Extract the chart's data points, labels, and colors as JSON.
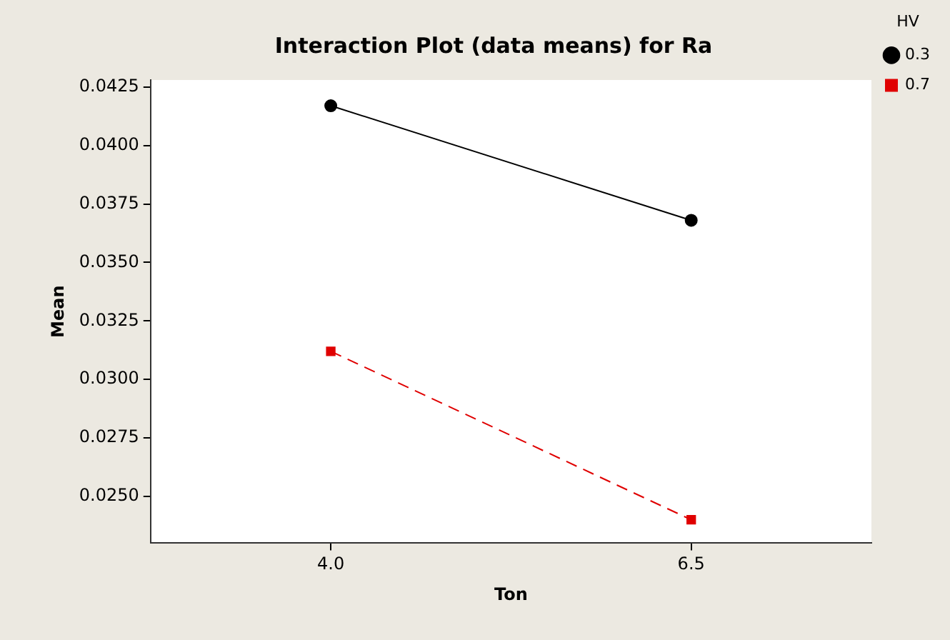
{
  "chart_data": {
    "type": "line",
    "title": "Interaction Plot (data means) for Ra",
    "xlabel": "Ton",
    "ylabel": "Mean",
    "legend_title": "HV",
    "x": [
      4.0,
      6.5
    ],
    "series": [
      {
        "name": "0.3",
        "color": "#000000",
        "values": [
          0.0417,
          0.0368
        ],
        "marker": "circle",
        "line_style": "solid"
      },
      {
        "name": "0.7",
        "color": "#e00000",
        "values": [
          0.0312,
          0.024
        ],
        "marker": "square",
        "line_style": "dashed"
      }
    ],
    "xlim": [
      2.75,
      7.75
    ],
    "xticks": [
      {
        "value": 4.0,
        "label": "4.0"
      },
      6.5
    ],
    "ylim": [
      0.023,
      0.0428
    ],
    "yticks": [
      {
        "value": 0.025,
        "label": "0.0250"
      },
      0.0275,
      {
        "value": 0.03,
        "label": "0.0300"
      },
      0.0325,
      {
        "value": 0.035,
        "label": "0.0350"
      },
      0.0375,
      {
        "value": 0.04,
        "label": "0.0400"
      },
      0.0425
    ],
    "grid": false,
    "legend": "top right"
  }
}
